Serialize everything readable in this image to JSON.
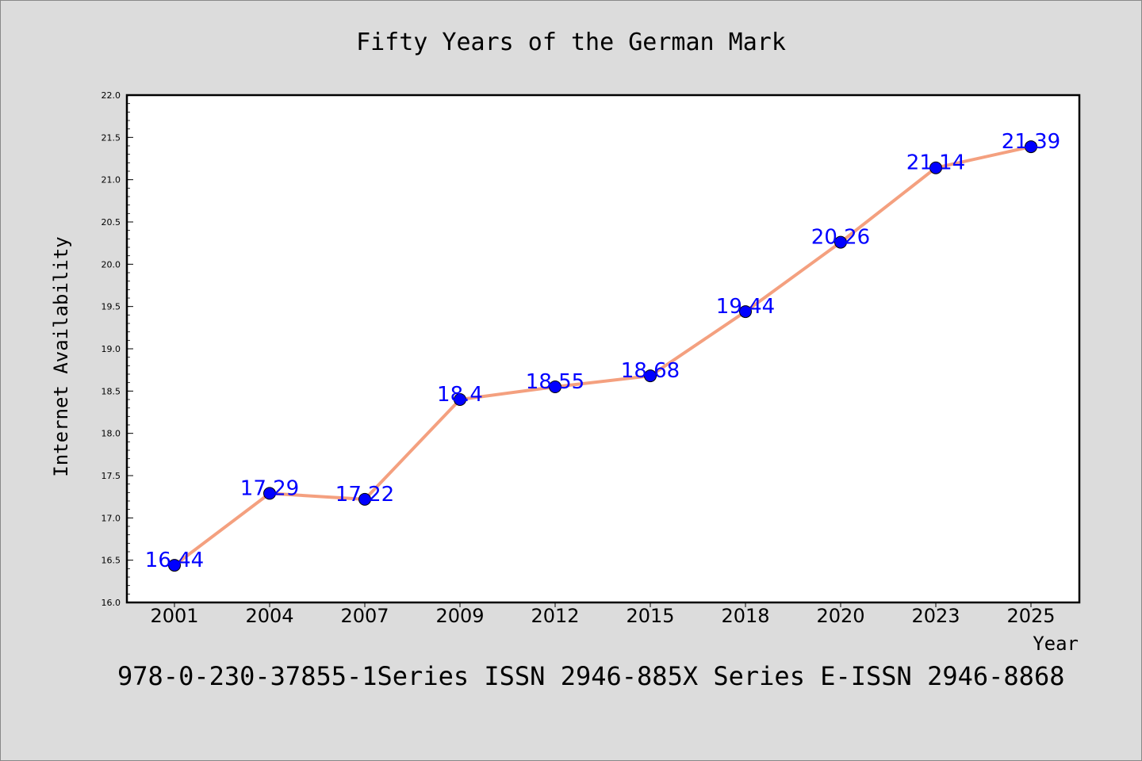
{
  "chart_data": {
    "type": "line",
    "title": "Fifty Years of the German Mark",
    "xlabel": "Year",
    "ylabel": "Internet Availability",
    "categories": [
      "2001",
      "2004",
      "2007",
      "2009",
      "2012",
      "2015",
      "2018",
      "2020",
      "2023",
      "2025"
    ],
    "series": [
      {
        "values": [
          16.44,
          17.29,
          17.22,
          18.4,
          18.55,
          18.68,
          19.44,
          20.26,
          21.14,
          21.39
        ],
        "data_labels": [
          "16.44",
          "17.29",
          "17.22",
          "18.4",
          "18.55",
          "18.68",
          "19.44",
          "20.26",
          "21.14",
          "21.39"
        ]
      }
    ],
    "ylim": [
      16.0,
      22.0
    ],
    "yticks": [
      "16.0",
      "16.5",
      "17.0",
      "17.5",
      "18.0",
      "18.5",
      "19.0",
      "19.5",
      "20.0",
      "20.5",
      "21.0",
      "21.5",
      "22.0"
    ],
    "grid": false,
    "legend": "none",
    "colors": {
      "line": "#f4a07f",
      "marker": "#0000ff",
      "data_label": "#0000ff",
      "background": "#dcdcdc",
      "plot_background": "#ffffff"
    }
  },
  "footer": "978-0-230-37855-1Series ISSN 2946-885X Series E-ISSN 2946-8868"
}
